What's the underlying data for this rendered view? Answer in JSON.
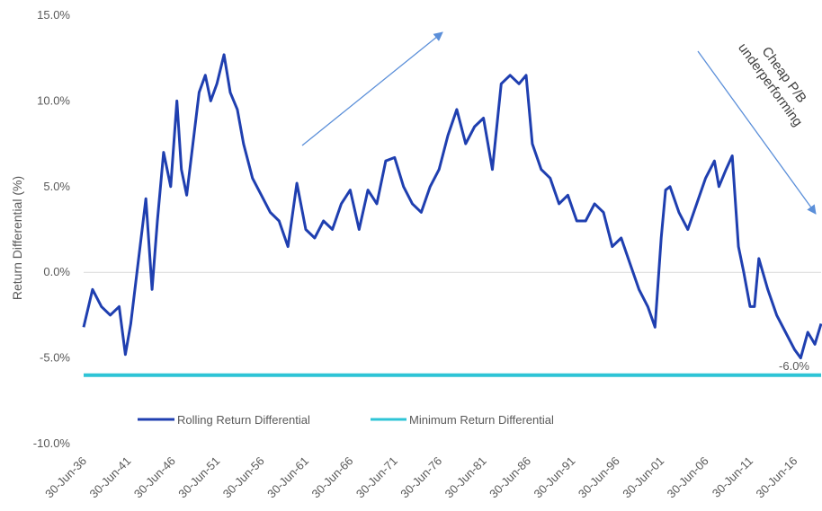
{
  "chart_data": {
    "type": "line",
    "ylabel": "Return Differential (%)",
    "ylim": [
      -10,
      15
    ],
    "y_ticks": [
      "15.0%",
      "10.0%",
      "5.0%",
      "0.0%",
      "-5.0%",
      "-10.0%"
    ],
    "x_ticks": [
      "30-Jun-36",
      "30-Jun-41",
      "30-Jun-46",
      "30-Jun-51",
      "30-Jun-56",
      "30-Jun-61",
      "30-Jun-66",
      "30-Jun-71",
      "30-Jun-76",
      "30-Jun-81",
      "30-Jun-86",
      "30-Jun-91",
      "30-Jun-96",
      "30-Jun-01",
      "30-Jun-06",
      "30-Jun-11",
      "30-Jun-16"
    ],
    "x_range_years": [
      1936,
      2019
    ],
    "grid": false,
    "legend_position": "bottom-left",
    "series": [
      {
        "name": "Rolling Return Differential",
        "color": "#1f3fb0",
        "x": [
          1936.0,
          1937.0,
          1938.0,
          1939.0,
          1940.0,
          1940.7,
          1941.3,
          1942.0,
          1943.0,
          1943.7,
          1944.3,
          1945.0,
          1945.8,
          1946.5,
          1947.0,
          1947.6,
          1948.3,
          1949.0,
          1949.7,
          1950.3,
          1951.0,
          1951.8,
          1952.5,
          1953.3,
          1954.0,
          1955.0,
          1956.0,
          1957.0,
          1958.0,
          1959.0,
          1960.0,
          1961.0,
          1962.0,
          1963.0,
          1964.0,
          1965.0,
          1966.0,
          1967.0,
          1968.0,
          1969.0,
          1970.0,
          1971.0,
          1972.0,
          1973.0,
          1974.0,
          1975.0,
          1976.0,
          1977.0,
          1978.0,
          1979.0,
          1980.0,
          1981.0,
          1982.0,
          1983.0,
          1984.0,
          1985.0,
          1985.8,
          1986.5,
          1987.5,
          1988.5,
          1989.5,
          1990.5,
          1991.5,
          1992.5,
          1993.5,
          1994.5,
          1995.5,
          1996.5,
          1997.5,
          1998.5,
          1999.5,
          2000.3,
          2001.0,
          2001.5,
          2002.0,
          2003.0,
          2004.0,
          2005.0,
          2006.0,
          2007.0,
          2007.5,
          2008.3,
          2009.0,
          2009.7,
          2010.3,
          2011.0,
          2011.5,
          2012.0,
          2013.0,
          2014.0,
          2015.0,
          2016.0,
          2016.7,
          2017.5,
          2018.3,
          2019.0
        ],
        "y": [
          -3.2,
          -1.0,
          -2.0,
          -2.5,
          -2.0,
          -4.8,
          -3.0,
          0.0,
          4.3,
          -1.0,
          3.0,
          7.0,
          5.0,
          10.0,
          6.0,
          4.5,
          7.5,
          10.5,
          11.5,
          10.0,
          11.0,
          12.7,
          10.5,
          9.5,
          7.5,
          5.5,
          4.5,
          3.5,
          3.0,
          1.5,
          5.2,
          2.5,
          2.0,
          3.0,
          2.5,
          4.0,
          4.8,
          2.5,
          4.8,
          4.0,
          6.5,
          6.7,
          5.0,
          4.0,
          3.5,
          5.0,
          6.0,
          8.0,
          9.5,
          7.5,
          8.5,
          9.0,
          6.0,
          11.0,
          11.5,
          11.0,
          11.5,
          7.5,
          6.0,
          5.5,
          4.0,
          4.5,
          3.0,
          3.0,
          4.0,
          3.5,
          1.5,
          2.0,
          0.5,
          -1.0,
          -2.0,
          -3.2,
          2.0,
          4.8,
          5.0,
          3.5,
          2.5,
          4.0,
          5.5,
          6.5,
          5.0,
          6.0,
          6.8,
          1.5,
          0.0,
          -2.0,
          -2.0,
          0.8,
          -1.0,
          -2.5,
          -3.5,
          -4.5,
          -5.0,
          -3.5,
          -4.2,
          -3.0
        ]
      },
      {
        "name": "Minimum Return Differential",
        "color": "#2ec4d6",
        "x": [
          1936.0,
          2019.0
        ],
        "y": [
          -6.0,
          -6.0
        ]
      }
    ],
    "data_labels": [
      {
        "text": "-6.0%"
      }
    ],
    "annotations": [
      {
        "text": "Cheap P/B"
      },
      {
        "text": "underperforming"
      }
    ]
  }
}
